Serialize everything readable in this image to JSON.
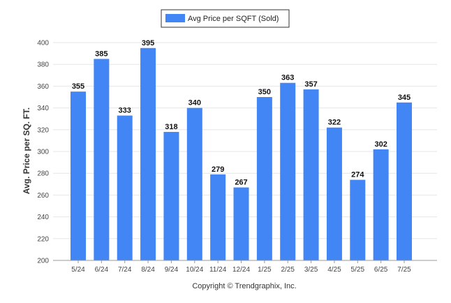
{
  "colors": {
    "bar": "#4285f4",
    "grid": "#e6e6e6",
    "axis": "#999999"
  },
  "legend": {
    "label": "Avg Price per SQFT (Sold)"
  },
  "footer": {
    "copyright": "Copyright © Trendgraphix, Inc."
  },
  "chart_data": {
    "type": "bar",
    "title": "",
    "xlabel": "",
    "ylabel": "Avg. Price per SQ. FT.",
    "ylim": [
      200,
      400
    ],
    "yticks": [
      200,
      220,
      240,
      260,
      280,
      300,
      320,
      340,
      360,
      380,
      400
    ],
    "grid": true,
    "legend_position": "top-center",
    "categories": [
      "5/24",
      "6/24",
      "7/24",
      "8/24",
      "9/24",
      "10/24",
      "11/24",
      "12/24",
      "1/25",
      "2/25",
      "3/25",
      "4/25",
      "5/25",
      "6/25",
      "7/25"
    ],
    "series": [
      {
        "name": "Avg Price per SQFT (Sold)",
        "values": [
          355,
          385,
          333,
          395,
          318,
          340,
          279,
          267,
          350,
          363,
          357,
          322,
          274,
          302,
          345
        ]
      }
    ]
  }
}
